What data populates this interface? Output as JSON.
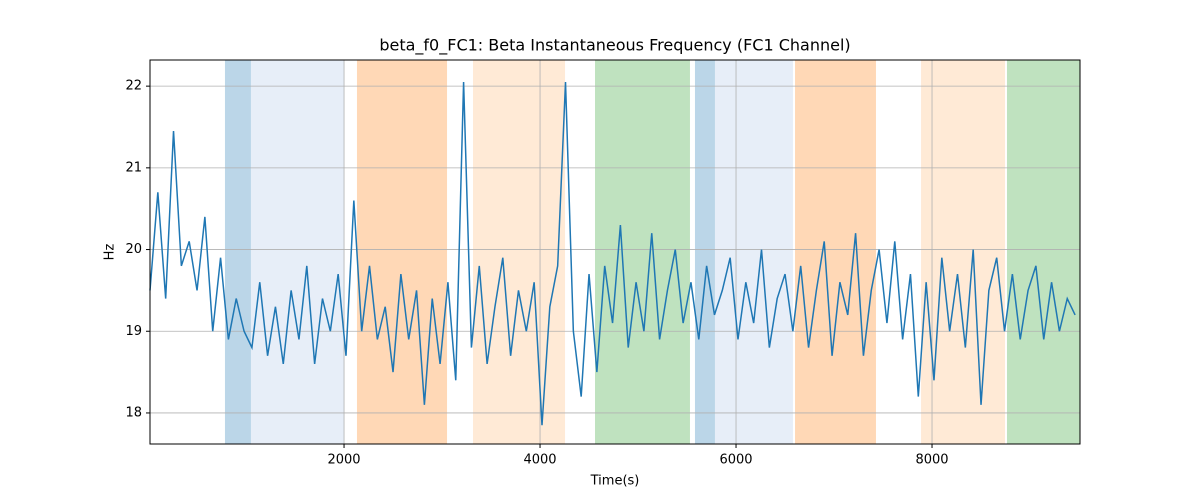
{
  "chart_data": {
    "type": "line",
    "title": "beta_f0_FC1: Beta Instantaneous Frequency (FC1 Channel)",
    "x_label": "Time(s)",
    "y_label": "Hz",
    "x": [
      20,
      100,
      180,
      260,
      340,
      420,
      500,
      580,
      660,
      740,
      820,
      900,
      980,
      1060,
      1140,
      1220,
      1300,
      1380,
      1460,
      1540,
      1620,
      1700,
      1780,
      1860,
      1940,
      2020,
      2100,
      2180,
      2260,
      2340,
      2420,
      2500,
      2580,
      2660,
      2740,
      2820,
      2900,
      2980,
      3060,
      3140,
      3220,
      3300,
      3380,
      3460,
      3540,
      3620,
      3700,
      3780,
      3860,
      3940,
      4020,
      4100,
      4180,
      4260,
      4340,
      4420,
      4500,
      4580,
      4660,
      4740,
      4820,
      4900,
      4980,
      5060,
      5140,
      5220,
      5300,
      5380,
      5460,
      5540,
      5620,
      5700,
      5780,
      5860,
      5940,
      6020,
      6100,
      6180,
      6260,
      6340,
      6420,
      6500,
      6580,
      6660,
      6740,
      6820,
      6900,
      6980,
      7060,
      7140,
      7220,
      7300,
      7380,
      7460,
      7540,
      7620,
      7700,
      7780,
      7860,
      7940,
      8020,
      8100,
      8180,
      8260,
      8340,
      8420,
      8500,
      8580,
      8660,
      8740,
      8820,
      8900,
      8980,
      9060,
      9140,
      9220,
      9300,
      9380,
      9460
    ],
    "series": [
      {
        "color": "#1f77b4",
        "values": [
          19.5,
          20.7,
          19.4,
          21.45,
          19.8,
          20.1,
          19.5,
          20.4,
          19.0,
          19.9,
          18.9,
          19.4,
          19.0,
          18.8,
          19.6,
          18.7,
          19.3,
          18.6,
          19.5,
          18.9,
          19.8,
          18.6,
          19.4,
          19.0,
          19.7,
          18.7,
          20.6,
          19.0,
          19.8,
          18.9,
          19.3,
          18.5,
          19.7,
          18.9,
          19.5,
          18.1,
          19.4,
          18.6,
          19.6,
          18.4,
          22.05,
          18.8,
          19.8,
          18.6,
          19.3,
          19.9,
          18.7,
          19.5,
          19.0,
          19.6,
          17.85,
          19.3,
          19.8,
          22.05,
          19.0,
          18.2,
          19.7,
          18.5,
          19.8,
          19.1,
          20.3,
          18.8,
          19.6,
          19.0,
          20.2,
          18.9,
          19.5,
          20.0,
          19.1,
          19.6,
          18.9,
          19.8,
          19.2,
          19.5,
          19.9,
          18.9,
          19.6,
          19.1,
          20.0,
          18.8,
          19.4,
          19.7,
          19.0,
          19.8,
          18.8,
          19.5,
          20.1,
          18.7,
          19.6,
          19.2,
          20.2,
          18.7,
          19.5,
          20.0,
          19.1,
          20.1,
          18.9,
          19.7,
          18.2,
          19.6,
          18.4,
          19.9,
          19.0,
          19.7,
          18.8,
          20.0,
          18.1,
          19.5,
          19.9,
          19.0,
          19.7,
          18.9,
          19.5,
          19.8,
          18.9,
          19.6,
          19.0,
          19.4,
          19.2
        ]
      }
    ],
    "spans": [
      {
        "start": 785,
        "end": 1050,
        "color": "#1f77b4"
      },
      {
        "start": 1050,
        "end": 2000,
        "color": "#aec7e8"
      },
      {
        "start": 2132,
        "end": 3051,
        "color": "#ff7f0e"
      },
      {
        "start": 3316,
        "end": 4255,
        "color": "#ffbb78"
      },
      {
        "start": 4561,
        "end": 5530,
        "color": "#2ca02c"
      },
      {
        "start": 5581,
        "end": 5785,
        "color": "#1f77b4"
      },
      {
        "start": 5785,
        "end": 6581,
        "color": "#aec7e8"
      },
      {
        "start": 6602,
        "end": 7428,
        "color": "#ff7f0e"
      },
      {
        "start": 7888,
        "end": 8745,
        "color": "#ffbb78"
      },
      {
        "start": 8765,
        "end": 9510,
        "color": "#2ca02c"
      }
    ],
    "xlim": [
      20,
      9510
    ],
    "ylim": [
      17.62,
      22.32
    ],
    "xticks": [
      2000,
      4000,
      6000,
      8000
    ],
    "yticks": [
      18,
      19,
      20,
      21,
      22
    ],
    "grid": true
  }
}
